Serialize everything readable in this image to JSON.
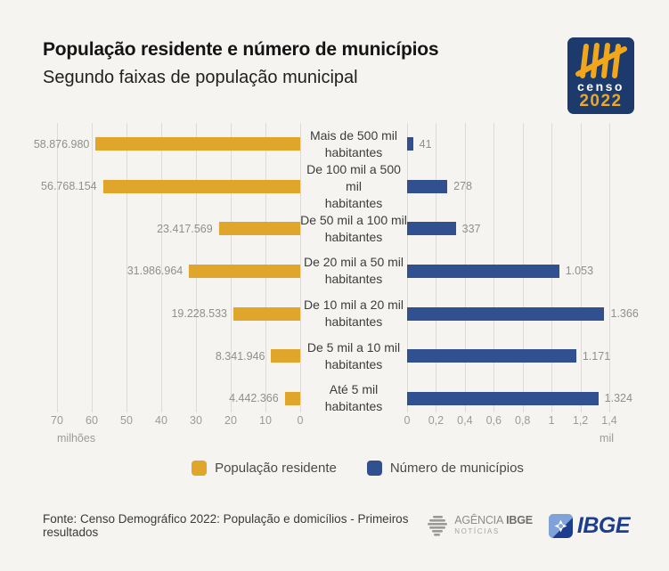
{
  "header": {
    "title": "População residente e número de municípios",
    "subtitle": "Segundo faixas de população municipal"
  },
  "censo_logo": {
    "name": "censo",
    "year": "2022"
  },
  "chart_data": {
    "type": "bar",
    "orientation": "horizontal",
    "layout": "mirrored two-panel pyramid, shared center category labels",
    "grid": true,
    "legend_position": "bottom",
    "categories": [
      [
        "Mais de 500 mil",
        "habitantes"
      ],
      [
        "De 100 mil a 500 mil",
        "habitantes"
      ],
      [
        "De 50 mil a 100 mil",
        "habitantes"
      ],
      [
        "De 20 mil a 50 mil",
        "habitantes"
      ],
      [
        "De 10 mil a 20 mil",
        "habitantes"
      ],
      [
        "De 5 mil a 10 mil",
        "habitantes"
      ],
      [
        "Até 5 mil",
        "habitantes"
      ]
    ],
    "series": [
      {
        "name": "População residente",
        "side": "left",
        "color": "#DFA62B",
        "axis_unit": "milhões",
        "axis_ticks": [
          "70",
          "60",
          "50",
          "40",
          "30",
          "20",
          "10",
          "0"
        ],
        "axis_max": 70000000,
        "values": [
          58876980,
          56768154,
          23417569,
          31986964,
          19228533,
          8341946,
          4442366
        ],
        "value_labels": [
          "58.876.980",
          "56.768.154",
          "23.417.569",
          "31.986.964",
          "19.228.533",
          "8.341.946",
          "4.442.366"
        ]
      },
      {
        "name": "Número de municípios",
        "side": "right",
        "color": "#30508F",
        "axis_unit": "mil",
        "axis_ticks": [
          "0",
          "0,2",
          "0,4",
          "0,6",
          "0,8",
          "1",
          "1,2",
          "1,4"
        ],
        "axis_max": 1400,
        "values": [
          41,
          278,
          337,
          1053,
          1366,
          1171,
          1324
        ],
        "value_labels": [
          "41",
          "278",
          "337",
          "1.053",
          "1.366",
          "1.171",
          "1.324"
        ]
      }
    ]
  },
  "footer": {
    "source": "Fonte: Censo Demográfico 2022: População e domicílios - Primeiros resultados",
    "agencia_logo": {
      "line1_regular": "AGÊNCIA",
      "line1_bold": "IBGE",
      "line2": "NOTÍCIAS"
    },
    "ibge_logo": {
      "text": "IBGE"
    }
  },
  "colors": {
    "background": "#F5F4F1",
    "grid": "#DCDBD7",
    "title": "#141414",
    "value_label": "#8F8F8F",
    "tick_label": "#9B9B9B",
    "category_label": "#3C3C3C",
    "legend_label": "#4A4A4A",
    "censo_navy": "#1C3A6B",
    "censo_yellow": "#F2A71B",
    "ibge_navy": "#1D3E8F",
    "ibge_lightblue": "#7FA3D8",
    "agencia_gray": "#8C8C8C"
  }
}
